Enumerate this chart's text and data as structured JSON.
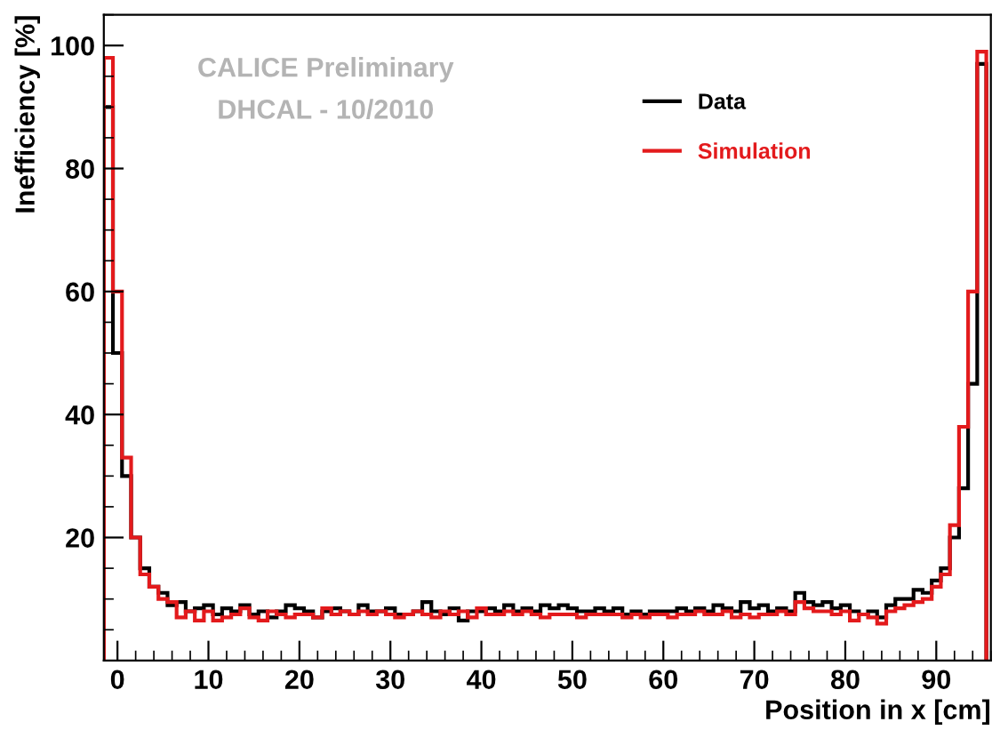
{
  "chart_data": {
    "type": "histogram",
    "xlabel": "Position in x [cm]",
    "ylabel": "Inefficiency [%]",
    "annotations": [
      "CALICE Preliminary",
      "DHCAL - 10/2010"
    ],
    "bins": [
      -1.5,
      -0.5,
      0.5,
      1.5,
      2.5,
      3.5,
      4.5,
      5.5,
      6.5,
      7.5,
      8.5,
      9.5,
      10.5,
      11.5,
      12.5,
      13.5,
      14.5,
      15.5,
      16.5,
      17.5,
      18.5,
      19.5,
      20.5,
      21.5,
      22.5,
      23.5,
      24.5,
      25.5,
      26.5,
      27.5,
      28.5,
      29.5,
      30.5,
      31.5,
      32.5,
      33.5,
      34.5,
      35.5,
      36.5,
      37.5,
      38.5,
      39.5,
      40.5,
      41.5,
      42.5,
      43.5,
      44.5,
      45.5,
      46.5,
      47.5,
      48.5,
      49.5,
      50.5,
      51.5,
      52.5,
      53.5,
      54.5,
      55.5,
      56.5,
      57.5,
      58.5,
      59.5,
      60.5,
      61.5,
      62.5,
      63.5,
      64.5,
      65.5,
      66.5,
      67.5,
      68.5,
      69.5,
      70.5,
      71.5,
      72.5,
      73.5,
      74.5,
      75.5,
      76.5,
      77.5,
      78.5,
      79.5,
      80.5,
      81.5,
      82.5,
      83.5,
      84.5,
      85.5,
      86.5,
      87.5,
      88.5,
      89.5,
      90.5,
      91.5,
      92.5,
      93.5,
      94.5,
      95.5
    ],
    "series": [
      {
        "name": "Data",
        "color": "#000000",
        "values": [
          90,
          50,
          30,
          20,
          15,
          12,
          11,
          9,
          9.5,
          8,
          8.5,
          9,
          7.5,
          8.5,
          8,
          9,
          7.5,
          8,
          7,
          8,
          9,
          8.5,
          8,
          7,
          8,
          8.5,
          8,
          7.5,
          9,
          8,
          8,
          8.5,
          7.5,
          7.5,
          8,
          9.5,
          8,
          7.5,
          8.5,
          6.5,
          8,
          8,
          8.5,
          8,
          9,
          8,
          8.5,
          8,
          9,
          8.5,
          9,
          8.5,
          8,
          8,
          8.5,
          8,
          8.5,
          7.5,
          8,
          7.5,
          8,
          8,
          8,
          8.5,
          8,
          8.5,
          8,
          9,
          8.5,
          8,
          9.5,
          8.5,
          9,
          8,
          8.5,
          8,
          11,
          9.5,
          9,
          9.5,
          8.5,
          9,
          8,
          7.5,
          8,
          7,
          9,
          10,
          10,
          11.5,
          11,
          13,
          15,
          20,
          28,
          45,
          97
        ]
      },
      {
        "name": "Simulation",
        "color": "#e31a1c",
        "values": [
          98,
          60,
          33,
          20,
          14,
          12,
          10,
          9.5,
          7,
          8,
          6.5,
          8,
          6.5,
          7,
          7.5,
          8.5,
          7,
          6.5,
          8,
          7.5,
          7,
          7.5,
          7.5,
          7,
          8.5,
          7.5,
          8,
          7.5,
          8,
          7.5,
          8,
          7.5,
          7,
          7.5,
          8,
          7.5,
          7,
          8,
          7.5,
          8,
          7,
          8.5,
          7.5,
          7.5,
          8,
          7.5,
          8,
          7.5,
          7,
          7.5,
          7.5,
          7.5,
          7,
          7.5,
          7.5,
          7.5,
          7.5,
          7,
          7.5,
          7,
          7.5,
          7.5,
          7,
          7.5,
          7.5,
          8,
          7.5,
          7.5,
          8,
          7,
          7.5,
          7,
          7.5,
          7.5,
          8,
          7.5,
          9.5,
          8.5,
          8,
          8,
          7.5,
          8,
          6.5,
          7.5,
          7,
          6,
          8,
          8.5,
          9,
          9.5,
          10,
          12,
          14,
          22,
          38,
          60,
          99
        ]
      }
    ],
    "xlim": [
      -1.5,
      96
    ],
    "ylim": [
      0,
      105
    ],
    "xticks": [
      0,
      10,
      20,
      30,
      40,
      50,
      60,
      70,
      80,
      90
    ],
    "yticks": [
      20,
      40,
      60,
      80,
      100
    ],
    "legend": "top right",
    "grid": false
  }
}
